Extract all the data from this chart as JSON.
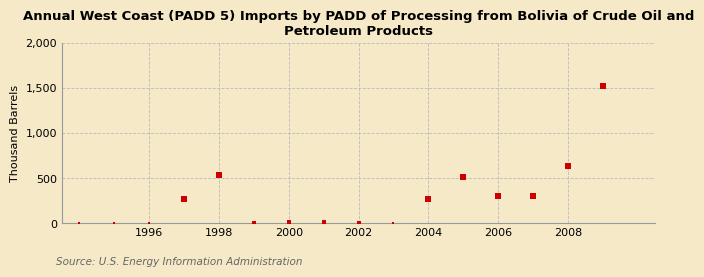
{
  "title": "Annual West Coast (PADD 5) Imports by PADD of Processing from Bolivia of Crude Oil and\nPetroleum Products",
  "ylabel": "Thousand Barrels",
  "source": "Source: U.S. Energy Information Administration",
  "background_color": "#f5e9c8",
  "plot_bg_color": "#f5e9c8",
  "marker_color": "#cc0000",
  "grid_color": "#bbbbbb",
  "years": [
    1994,
    1995,
    1996,
    1997,
    1998,
    1999,
    2000,
    2001,
    2002,
    2003,
    2004,
    2005,
    2006,
    2007,
    2008,
    2009
  ],
  "values": [
    0,
    0,
    0,
    270,
    540,
    5,
    10,
    10,
    5,
    0,
    275,
    520,
    305,
    305,
    640,
    1520
  ],
  "near_zero": [
    false,
    false,
    false,
    false,
    false,
    true,
    true,
    true,
    true,
    false,
    false,
    false,
    false,
    false,
    false,
    false
  ],
  "ylim": [
    0,
    2000
  ],
  "yticks": [
    0,
    500,
    1000,
    1500,
    2000
  ],
  "ytick_labels": [
    "0",
    "500",
    "1,000",
    "1,500",
    "2,000"
  ],
  "xlim": [
    1993.5,
    2010.5
  ],
  "xticks": [
    1996,
    1998,
    2000,
    2002,
    2004,
    2006,
    2008
  ],
  "marker_size_large": 5,
  "marker_size_small": 3,
  "title_fontsize": 9.5,
  "axis_label_fontsize": 8,
  "tick_fontsize": 8,
  "source_fontsize": 7.5
}
